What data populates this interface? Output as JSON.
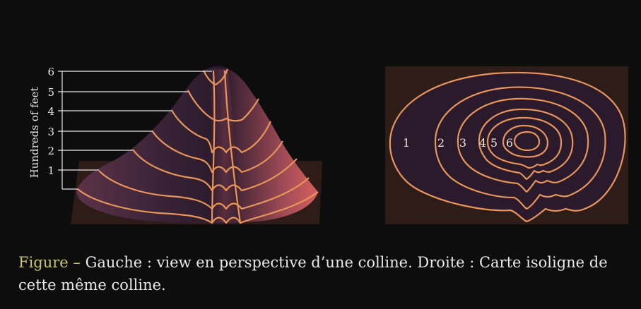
{
  "left_panel": {
    "axis_label": "Hundreds of feet",
    "ticks": [
      "1",
      "2",
      "3",
      "4",
      "5",
      "6"
    ]
  },
  "right_panel": {
    "contour_labels": [
      "1",
      "2",
      "3",
      "4",
      "5",
      "6"
    ]
  },
  "caption": {
    "label": "Figure",
    "separator": "–",
    "text": "Gauche : view en perspective d’une colline. Droite : Carte isoligne de cette même colline."
  },
  "colors": {
    "background": "#0d0d0d",
    "contour_line": "#e8955a",
    "hill_dark": "#2b1a2e",
    "hill_light": "#d85e5e",
    "ground": "#2e1c18",
    "caption_label": "#c9c46a"
  }
}
